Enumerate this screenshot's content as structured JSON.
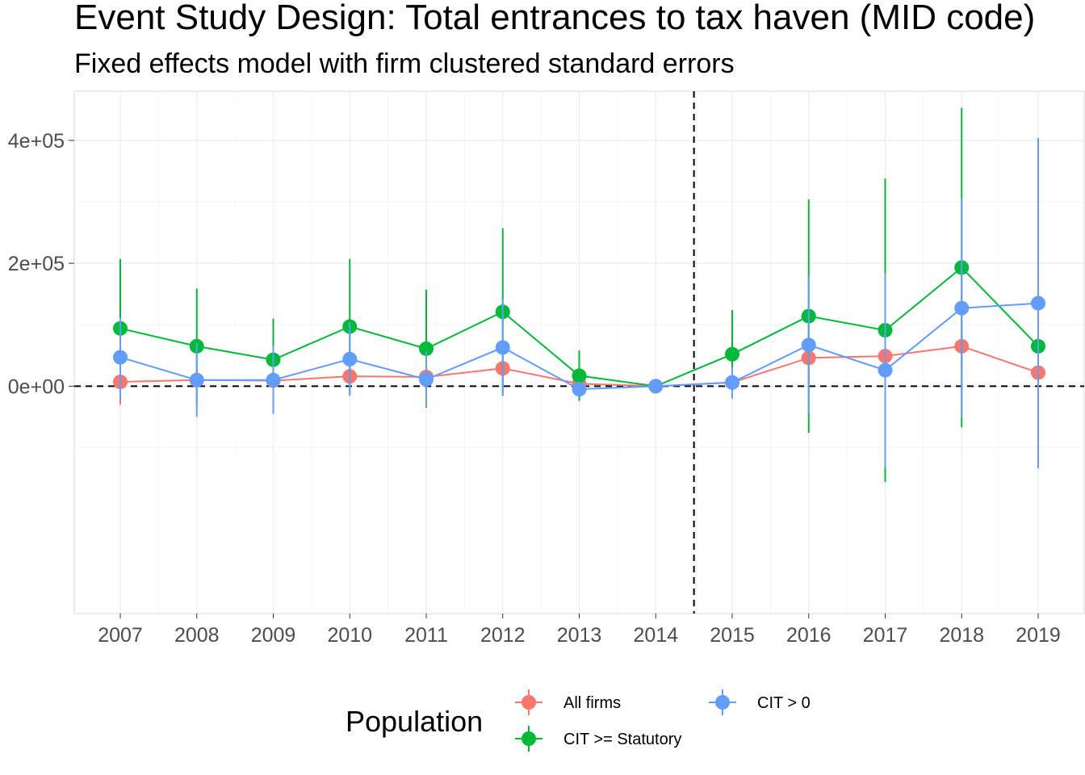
{
  "chart_data": {
    "type": "line",
    "title": "Event Study Design: Total entrances to tax haven (MID code)",
    "subtitle": "Fixed effects model with firm clustered standard errors",
    "xlabel": "",
    "ylabel": "",
    "categories": [
      "2007",
      "2008",
      "2009",
      "2010",
      "2011",
      "2012",
      "2013",
      "2014",
      "2015",
      "2016",
      "2017",
      "2018",
      "2019"
    ],
    "ylim": [
      -370000,
      480000
    ],
    "yticks": [
      0,
      200000,
      400000
    ],
    "ytick_labels": [
      "0e+00",
      "2e+05",
      "4e+05"
    ],
    "reference_lines": {
      "y": 0,
      "x_between": [
        "2014",
        "2015"
      ]
    },
    "grid": true,
    "legend": {
      "title": "Population",
      "position": "bottom"
    },
    "series": [
      {
        "name": "All firms",
        "color": "#F8766D",
        "values": [
          7000,
          10000,
          9000,
          16000,
          15000,
          29000,
          4000,
          0,
          6000,
          46000,
          49000,
          65000,
          22000
        ],
        "lower": [
          -30000,
          -5000,
          -5000,
          -3000,
          -3000,
          5000,
          -7000,
          0,
          -5000,
          5000,
          15000,
          25000,
          0
        ],
        "upper": [
          45000,
          25000,
          23000,
          35000,
          33000,
          53000,
          15000,
          0,
          17000,
          87000,
          83000,
          105000,
          44000
        ]
      },
      {
        "name": "CIT >= Statutory",
        "color": "#00BA38",
        "values": [
          94000,
          65000,
          43000,
          97000,
          61000,
          121000,
          17000,
          0,
          52000,
          114000,
          91000,
          193000,
          65000
        ],
        "lower": [
          -19000,
          -29000,
          -24000,
          -13000,
          -35000,
          -15000,
          -24000,
          0,
          -20000,
          -76000,
          -156000,
          -67000,
          -22000
        ],
        "upper": [
          207000,
          159000,
          110000,
          207000,
          157000,
          257000,
          58000,
          0,
          124000,
          304000,
          338000,
          453000,
          152000
        ]
      },
      {
        "name": "CIT > 0",
        "color": "#619CFF",
        "values": [
          47000,
          10000,
          10000,
          44000,
          11000,
          63000,
          -5000,
          0,
          6000,
          67000,
          26000,
          127000,
          135000
        ],
        "lower": [
          -18000,
          -50000,
          -45000,
          -16000,
          -34000,
          -16000,
          -17000,
          0,
          -19000,
          -45000,
          -132000,
          -52000,
          -134000
        ],
        "upper": [
          112000,
          70000,
          65000,
          104000,
          56000,
          142000,
          7000,
          0,
          31000,
          179000,
          184000,
          306000,
          404000
        ]
      }
    ]
  }
}
